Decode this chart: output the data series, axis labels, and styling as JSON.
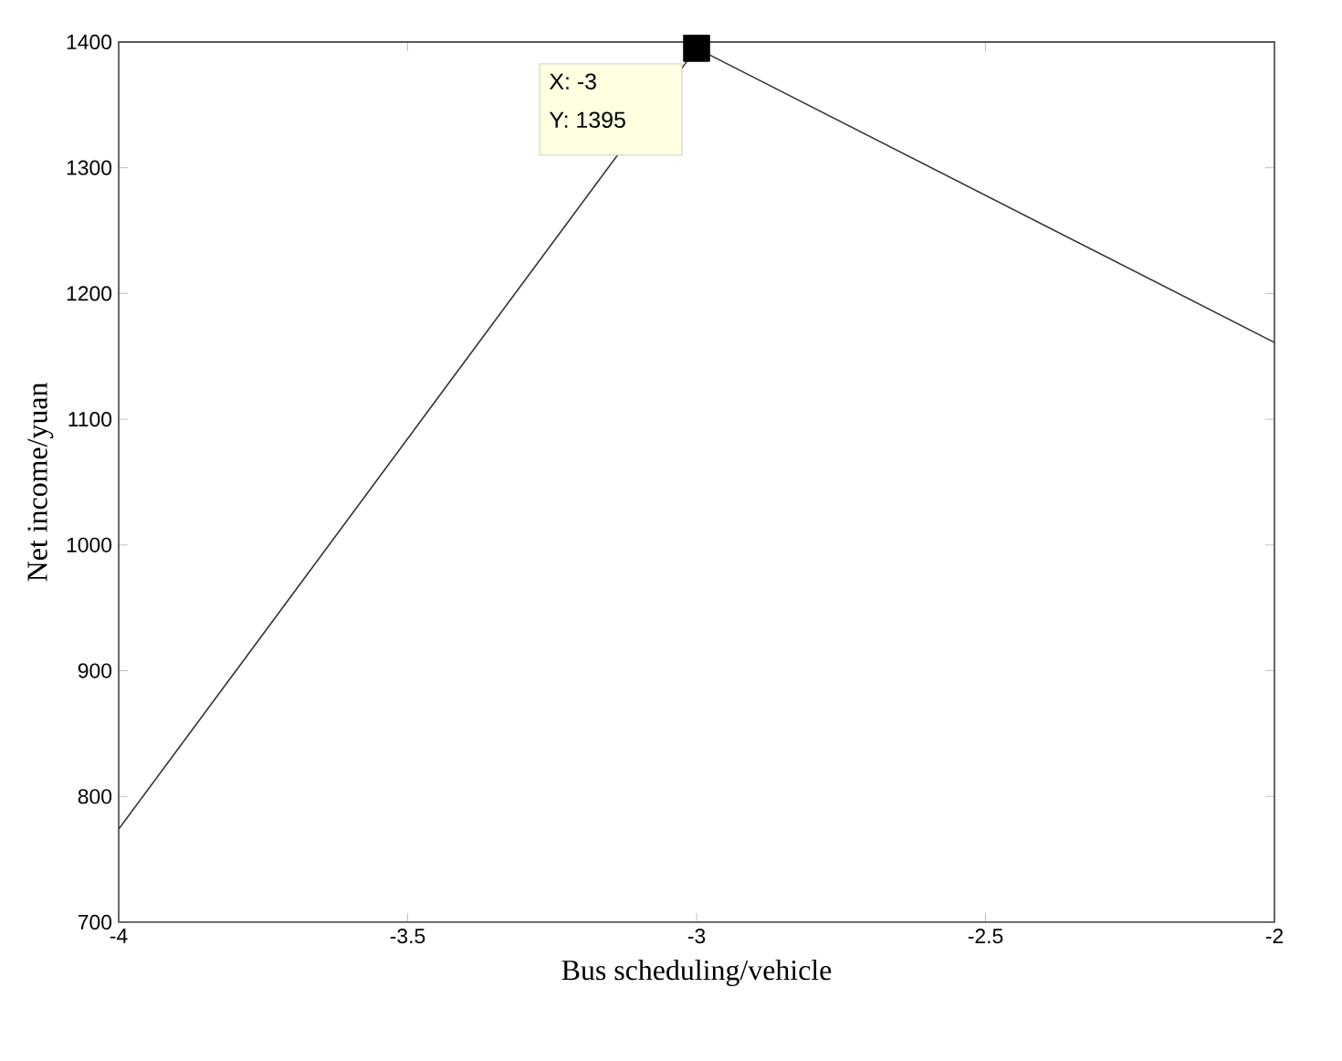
{
  "chart_data": {
    "type": "line",
    "xlabel": "Bus scheduling/vehicle",
    "ylabel": "Net income/yuan",
    "x": [
      -4,
      -3,
      -2
    ],
    "series": [
      {
        "color": "#333333",
        "values": [
          774,
          1395,
          1161
        ]
      },
      {
        "type": "scatter",
        "x": [
          -3
        ],
        "color": "#000000",
        "marker": "square",
        "values": [
          1395
        ]
      }
    ],
    "xlim": [
      -4,
      -2
    ],
    "xticks": [
      -4,
      -3.5,
      -3,
      -2.5,
      -2
    ],
    "ylim": [
      700,
      1400
    ],
    "yticks": [
      700,
      800,
      900,
      1000,
      1100,
      1200,
      1300,
      1400
    ],
    "grid": false,
    "marker": "none",
    "line_style": "solid",
    "annotations": [
      "X: -3",
      "Y: 1395"
    ]
  }
}
